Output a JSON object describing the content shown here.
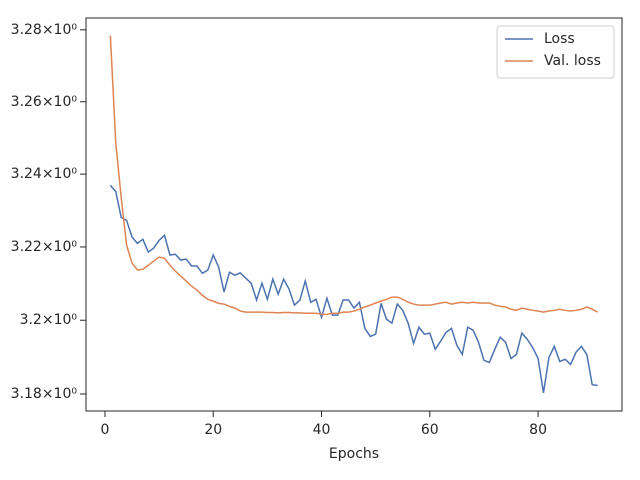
{
  "chart_data": {
    "type": "line",
    "xlabel": "Epochs",
    "yscale": "log",
    "grid": false,
    "legend": "upper right",
    "x": [
      1,
      2,
      3,
      4,
      5,
      6,
      7,
      8,
      9,
      10,
      11,
      12,
      13,
      14,
      15,
      16,
      17,
      18,
      19,
      20,
      21,
      22,
      23,
      24,
      25,
      26,
      27,
      28,
      29,
      30,
      31,
      32,
      33,
      34,
      35,
      36,
      37,
      38,
      39,
      40,
      41,
      42,
      43,
      44,
      45,
      46,
      47,
      48,
      49,
      50,
      51,
      52,
      53,
      54,
      55,
      56,
      57,
      58,
      59,
      60,
      61,
      62,
      63,
      64,
      65,
      66,
      67,
      68,
      69,
      70,
      71,
      72,
      73,
      74,
      75,
      76,
      77,
      78,
      79,
      80,
      81,
      82,
      83,
      84,
      85,
      86,
      87,
      88,
      89,
      90,
      91
    ],
    "series": [
      {
        "name": "Loss",
        "color": "#4c72b0",
        "values": [
          3.2369,
          3.2352,
          3.2281,
          3.2273,
          3.2227,
          3.221,
          3.2221,
          3.2186,
          3.2197,
          3.2218,
          3.2232,
          3.2178,
          3.218,
          3.2164,
          3.2167,
          3.2148,
          3.2148,
          3.2128,
          3.2137,
          3.2178,
          3.2145,
          3.2077,
          3.2131,
          3.2123,
          3.2129,
          3.2115,
          3.2101,
          3.2055,
          3.2101,
          3.2057,
          3.2112,
          3.2071,
          3.2112,
          3.2085,
          3.2041,
          3.2055,
          3.2107,
          3.2049,
          3.2057,
          3.2008,
          3.206,
          3.2014,
          3.2014,
          3.2055,
          3.2055,
          3.2033,
          3.2049,
          3.1978,
          3.1956,
          3.1962,
          3.2046,
          3.2003,
          3.1992,
          3.2044,
          3.2027,
          3.1992,
          3.1937,
          3.1981,
          3.1962,
          3.1965,
          3.1921,
          3.1943,
          3.1967,
          3.1978,
          3.1932,
          3.1907,
          3.1981,
          3.1973,
          3.194,
          3.1891,
          3.1885,
          3.1921,
          3.1954,
          3.194,
          3.1896,
          3.1907,
          3.1965,
          3.1948,
          3.1926,
          3.1896,
          3.1803,
          3.1899,
          3.1929,
          3.1888,
          3.1894,
          3.188,
          3.1913,
          3.1929,
          3.1907,
          3.1825,
          3.1823
        ]
      },
      {
        "name": "Val. loss",
        "color": "#dd8452",
        "values": [
          3.2784,
          3.2486,
          3.2336,
          3.2205,
          3.2156,
          3.2137,
          3.2139,
          3.215,
          3.2161,
          3.2172,
          3.2169,
          3.215,
          3.2134,
          3.212,
          3.2107,
          3.2093,
          3.2082,
          3.2068,
          3.2057,
          3.2052,
          3.2046,
          3.2044,
          3.2038,
          3.2033,
          3.2025,
          3.2022,
          3.2022,
          3.2022,
          3.2022,
          3.2021,
          3.2021,
          3.202,
          3.2021,
          3.2021,
          3.202,
          3.202,
          3.2019,
          3.2019,
          3.2019,
          3.2016,
          3.2016,
          3.2019,
          3.2019,
          3.2022,
          3.2022,
          3.2025,
          3.203,
          3.2036,
          3.2041,
          3.2047,
          3.2052,
          3.2057,
          3.2063,
          3.2063,
          3.2057,
          3.2049,
          3.2044,
          3.2041,
          3.2041,
          3.2041,
          3.2044,
          3.2047,
          3.2049,
          3.2044,
          3.2047,
          3.2049,
          3.2047,
          3.2049,
          3.2047,
          3.2047,
          3.2047,
          3.2041,
          3.2038,
          3.2036,
          3.203,
          3.2027,
          3.2033,
          3.203,
          3.2027,
          3.2025,
          3.2022,
          3.2025,
          3.2027,
          3.203,
          3.2027,
          3.2025,
          3.2027,
          3.203,
          3.2036,
          3.203,
          3.2022
        ]
      }
    ],
    "xlim": [
      -3.5,
      95.5
    ],
    "xticks": [
      0,
      20,
      40,
      60,
      80
    ],
    "ylim": [
      3.1754,
      3.2833
    ],
    "yticks": [
      {
        "value": 3.18,
        "label": "3.18×10⁰"
      },
      {
        "value": 3.2,
        "label": "3.2×10⁰"
      },
      {
        "value": 3.22,
        "label": "3.22×10⁰"
      },
      {
        "value": 3.24,
        "label": "3.24×10⁰"
      },
      {
        "value": 3.26,
        "label": "3.26×10⁰"
      },
      {
        "value": 3.28,
        "label": "3.28×10⁰"
      }
    ]
  }
}
